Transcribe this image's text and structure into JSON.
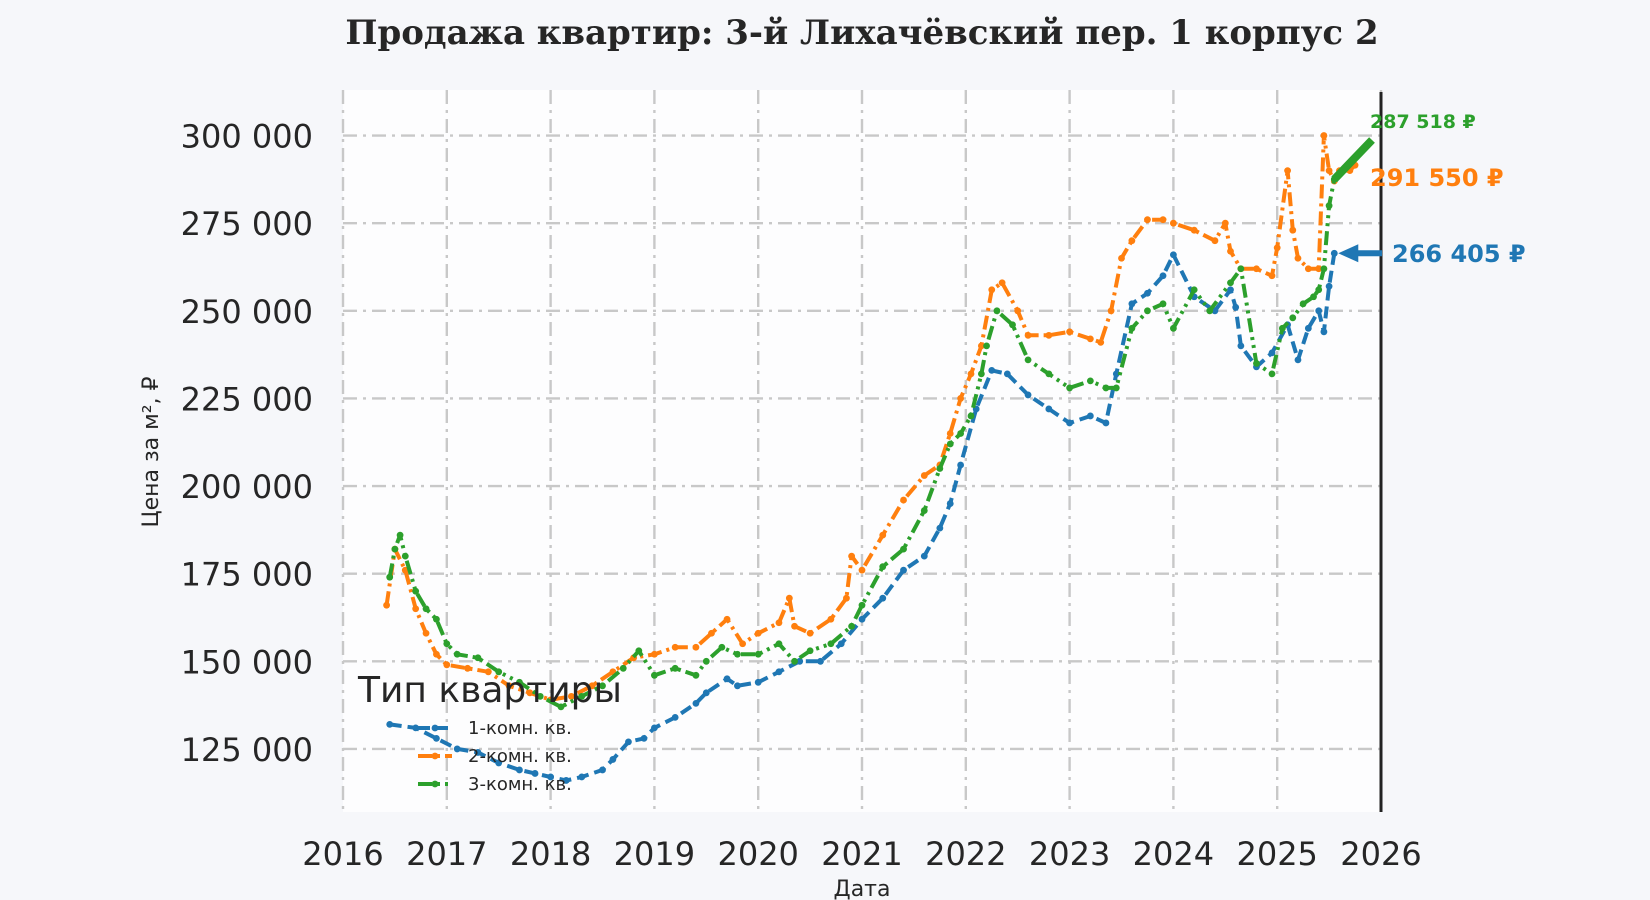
{
  "chart_data": {
    "type": "line",
    "title": "Продажа квартир: 3-й Лихачёвский пер. 1 корпус 2",
    "xlabel": "Дата",
    "ylabel": "Цена за м², ₽",
    "xlim": [
      2016,
      2026
    ],
    "ylim": [
      107000,
      313000
    ],
    "x_ticks": [
      "2016",
      "2017",
      "2018",
      "2019",
      "2020",
      "2021",
      "2022",
      "2023",
      "2024",
      "2025",
      "2026"
    ],
    "y_ticks": [
      {
        "value": 125000,
        "label": "125 000"
      },
      {
        "value": 150000,
        "label": "150 000"
      },
      {
        "value": 175000,
        "label": "175 000"
      },
      {
        "value": 200000,
        "label": "200 000"
      },
      {
        "value": 225000,
        "label": "225 000"
      },
      {
        "value": 250000,
        "label": "250 000"
      },
      {
        "value": 275000,
        "label": "275 000"
      },
      {
        "value": 300000,
        "label": "300 000"
      }
    ],
    "grid": true,
    "legend": {
      "title": "Тип квартиры",
      "position": "lower-left"
    },
    "series": [
      {
        "name": "1-комн. кв.",
        "color": "#1f77b4",
        "style": "dashed",
        "end_label": "266 405 ₽",
        "x": [
          2016.45,
          2016.7,
          2016.9,
          2017.1,
          2017.3,
          2017.5,
          2017.7,
          2017.85,
          2018.0,
          2018.15,
          2018.3,
          2018.5,
          2018.6,
          2018.75,
          2018.9,
          2019.0,
          2019.2,
          2019.4,
          2019.5,
          2019.7,
          2019.8,
          2020.0,
          2020.2,
          2020.4,
          2020.6,
          2020.8,
          2021.0,
          2021.2,
          2021.4,
          2021.6,
          2021.75,
          2021.85,
          2021.95,
          2022.1,
          2022.25,
          2022.4,
          2022.6,
          2022.8,
          2023.0,
          2023.2,
          2023.35,
          2023.45,
          2023.6,
          2023.75,
          2023.9,
          2024.0,
          2024.2,
          2024.4,
          2024.55,
          2024.6,
          2024.65,
          2024.8,
          2024.95,
          2025.1,
          2025.2,
          2025.3,
          2025.4,
          2025.45,
          2025.5,
          2025.55
        ],
        "y": [
          132000,
          131000,
          128000,
          125000,
          124000,
          121000,
          119000,
          118000,
          117000,
          116000,
          117000,
          119000,
          122000,
          127000,
          128000,
          131000,
          134000,
          138000,
          141000,
          145000,
          143000,
          144000,
          147000,
          150000,
          150000,
          155000,
          162000,
          168000,
          176000,
          180000,
          188000,
          195000,
          206000,
          222000,
          233000,
          232000,
          226000,
          222000,
          218000,
          220000,
          218000,
          232000,
          252000,
          255000,
          260000,
          266000,
          254000,
          250000,
          256000,
          251000,
          240000,
          234000,
          238000,
          246000,
          236000,
          245000,
          250000,
          244000,
          257000,
          266405
        ]
      },
      {
        "name": "2-комн. кв.",
        "color": "#ff7f0e",
        "style": "dashdot",
        "end_label": "291 550 ₽",
        "x": [
          2016.42,
          2016.5,
          2016.6,
          2016.7,
          2016.8,
          2016.9,
          2017.0,
          2017.2,
          2017.4,
          2017.6,
          2017.8,
          2018.0,
          2018.2,
          2018.4,
          2018.6,
          2018.8,
          2019.0,
          2019.2,
          2019.4,
          2019.55,
          2019.7,
          2019.85,
          2020.0,
          2020.2,
          2020.3,
          2020.35,
          2020.5,
          2020.7,
          2020.85,
          2020.9,
          2021.0,
          2021.2,
          2021.4,
          2021.6,
          2021.75,
          2021.85,
          2021.95,
          2022.05,
          2022.15,
          2022.25,
          2022.35,
          2022.5,
          2022.6,
          2022.8,
          2023.0,
          2023.2,
          2023.3,
          2023.4,
          2023.5,
          2023.6,
          2023.75,
          2023.9,
          2024.0,
          2024.2,
          2024.4,
          2024.5,
          2024.55,
          2024.65,
          2024.8,
          2024.95,
          2025.0,
          2025.1,
          2025.15,
          2025.2,
          2025.3,
          2025.4,
          2025.45,
          2025.5,
          2025.55,
          2025.6,
          2025.7,
          2025.75
        ],
        "y": [
          166000,
          182000,
          176000,
          165000,
          158000,
          152000,
          149000,
          148000,
          147000,
          143000,
          141000,
          139000,
          140000,
          143000,
          147000,
          151000,
          152000,
          154000,
          154000,
          158000,
          162000,
          155000,
          158000,
          161000,
          168000,
          160000,
          158000,
          162000,
          168000,
          180000,
          176000,
          186000,
          196000,
          203000,
          206000,
          215000,
          225000,
          232000,
          240000,
          256000,
          258000,
          250000,
          243000,
          243000,
          244000,
          242000,
          241000,
          250000,
          265000,
          270000,
          276000,
          276000,
          275000,
          273000,
          270000,
          275000,
          267000,
          262000,
          262000,
          260000,
          268000,
          290000,
          273000,
          265000,
          262000,
          262000,
          300000,
          290000,
          287000,
          290000,
          290000,
          291550
        ]
      },
      {
        "name": "3-комн. кв.",
        "color": "#2ca02c",
        "style": "dashdot-dot",
        "end_label": "287 518 ₽",
        "x": [
          2016.45,
          2016.5,
          2016.55,
          2016.6,
          2016.7,
          2016.8,
          2016.9,
          2017.0,
          2017.1,
          2017.3,
          2017.5,
          2017.7,
          2017.9,
          2018.1,
          2018.3,
          2018.5,
          2018.7,
          2018.85,
          2019.0,
          2019.2,
          2019.4,
          2019.5,
          2019.65,
          2019.8,
          2020.0,
          2020.2,
          2020.35,
          2020.5,
          2020.7,
          2020.9,
          2021.0,
          2021.2,
          2021.4,
          2021.6,
          2021.75,
          2021.85,
          2021.95,
          2022.05,
          2022.15,
          2022.2,
          2022.3,
          2022.45,
          2022.6,
          2022.8,
          2023.0,
          2023.2,
          2023.35,
          2023.45,
          2023.6,
          2023.75,
          2023.9,
          2024.0,
          2024.2,
          2024.35,
          2024.55,
          2024.65,
          2024.8,
          2024.95,
          2025.05,
          2025.15,
          2025.25,
          2025.35,
          2025.4,
          2025.45,
          2025.5,
          2025.55
        ],
        "y": [
          174000,
          182000,
          186000,
          180000,
          170000,
          165000,
          162000,
          155000,
          152000,
          151000,
          147000,
          144000,
          140000,
          137000,
          140000,
          143000,
          148000,
          153000,
          146000,
          148000,
          146000,
          150000,
          154000,
          152000,
          152000,
          155000,
          150000,
          153000,
          155000,
          160000,
          166000,
          177000,
          182000,
          193000,
          205000,
          212000,
          215000,
          220000,
          232000,
          240000,
          250000,
          246000,
          236000,
          232000,
          228000,
          230000,
          228000,
          228000,
          245000,
          250000,
          252000,
          245000,
          256000,
          250000,
          258000,
          262000,
          235000,
          232000,
          245000,
          248000,
          252000,
          254000,
          256000,
          262000,
          280000,
          287518
        ]
      }
    ]
  }
}
